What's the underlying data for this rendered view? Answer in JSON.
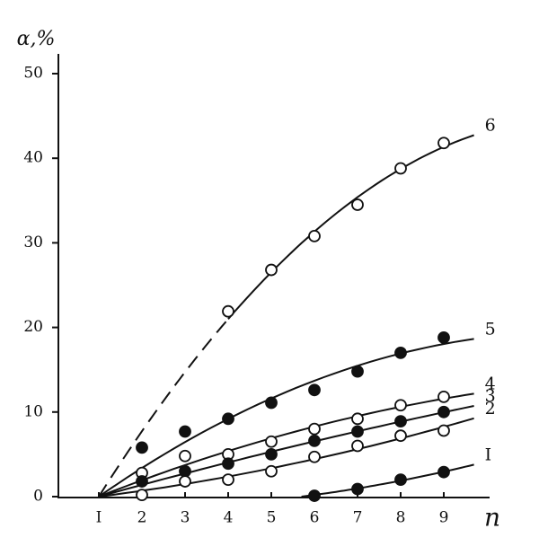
{
  "chart_data": {
    "type": "scatter",
    "x_label": "n",
    "y_label": "ɑ,%",
    "xlim": [
      0,
      10
    ],
    "ylim": [
      0,
      50
    ],
    "xticks": [
      {
        "value": 1,
        "label": "I"
      },
      2,
      3,
      4,
      5,
      6,
      7,
      8,
      9
    ],
    "yticks": [
      0,
      10,
      20,
      30,
      40,
      50
    ],
    "series": [
      {
        "name": "6",
        "color": "#111",
        "marker": "open",
        "x": [
          4,
          5,
          6,
          7,
          8,
          9
        ],
        "values": [
          21.9,
          26.8,
          30.8,
          34.5,
          38.8,
          41.8
        ]
      },
      {
        "name": "5",
        "color": "#111",
        "marker": "filled",
        "x": [
          2,
          3,
          4,
          5,
          6,
          7,
          8,
          9
        ],
        "values": [
          5.8,
          7.7,
          9.2,
          11.1,
          12.6,
          14.8,
          17,
          18.8
        ]
      },
      {
        "name": "4",
        "color": "#111",
        "marker": "open",
        "x": [
          2,
          3,
          4,
          5,
          6,
          7,
          8,
          9
        ],
        "values": [
          2.8,
          4.8,
          5,
          6.5,
          8,
          9.2,
          10.8,
          11.8
        ]
      },
      {
        "name": "3",
        "color": "#111",
        "marker": "filled",
        "x": [
          2,
          3,
          4,
          5,
          6,
          7,
          8,
          9
        ],
        "values": [
          1.8,
          3,
          3.9,
          5,
          6.6,
          7.7,
          8.9,
          10
        ]
      },
      {
        "name": "2",
        "color": "#111",
        "marker": "open",
        "x": [
          2,
          3,
          4,
          5,
          6,
          7,
          8,
          9
        ],
        "values": [
          0.2,
          1.8,
          2,
          3,
          4.7,
          6,
          7.2,
          7.8
        ]
      },
      {
        "name": "I",
        "color": "#111",
        "marker": "filled",
        "x": [
          6,
          7,
          8,
          9
        ],
        "values": [
          0.1,
          0.9,
          2,
          2.9
        ]
      }
    ]
  }
}
